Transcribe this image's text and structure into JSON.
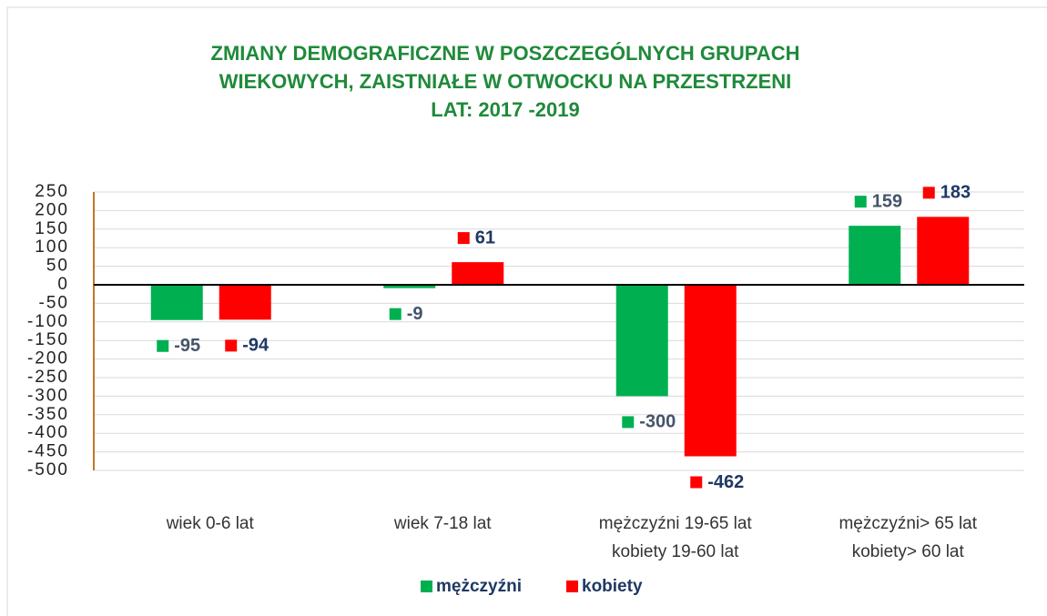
{
  "chart_data": {
    "type": "bar",
    "title": [
      "ZMIANY DEMOGRAFICZNE W POSZCZEGÓLNYCH GRUPACH",
      "WIEKOWYCH, ZAISTNIAŁE W OTWOCKU NA PRZESTRZENI",
      "LAT: 2017 -2019"
    ],
    "categories": [
      [
        "wiek 0-6 lat"
      ],
      [
        "wiek 7-18 lat"
      ],
      [
        "mężczyźni 19-65 lat",
        "kobiety 19-60 lat"
      ],
      [
        "mężczyźni> 65 lat",
        "kobiety> 60 lat"
      ]
    ],
    "series": [
      {
        "name": "mężczyźni",
        "color": "#00b050",
        "label_color": "#44546a",
        "values": [
          -95,
          -9,
          -300,
          159
        ]
      },
      {
        "name": "kobiety",
        "color": "#ff0000",
        "label_color": "#1f3864",
        "values": [
          -94,
          61,
          -462,
          183
        ]
      }
    ],
    "ylim": [
      -500,
      250
    ],
    "yticks": [
      -500,
      -450,
      -400,
      -350,
      -300,
      -250,
      -200,
      -150,
      -100,
      -50,
      0,
      50,
      100,
      150,
      200,
      250
    ],
    "grid": true,
    "legend": "bottom"
  }
}
